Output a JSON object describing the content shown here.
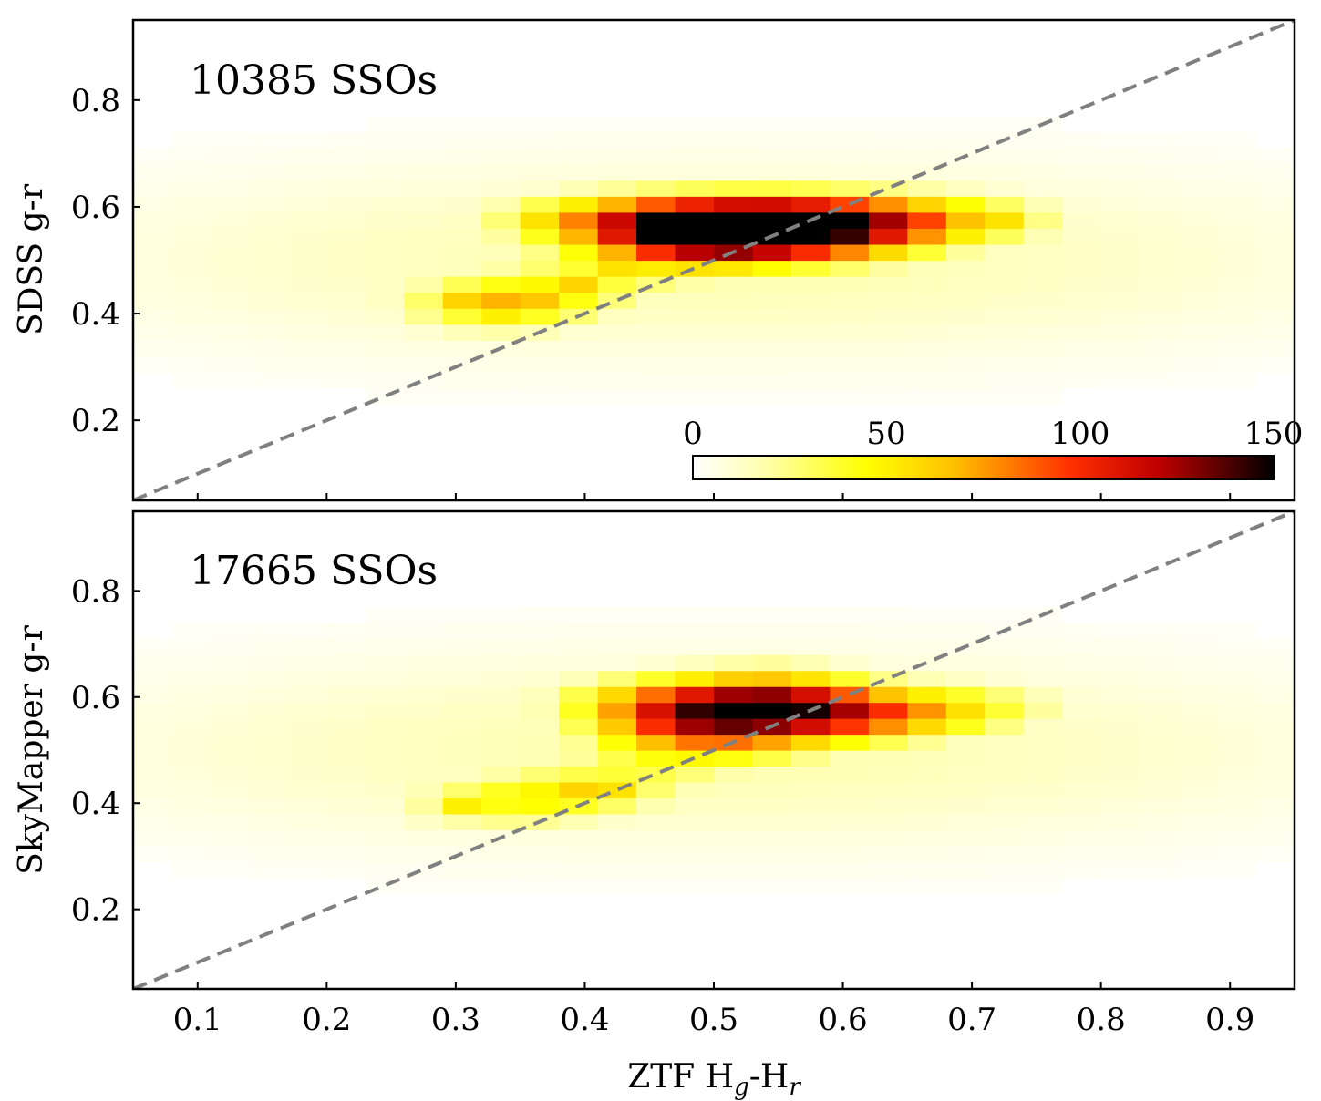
{
  "chart_data": [
    {
      "type": "heatmap",
      "panel": "top",
      "annotation": "10385 SSOs",
      "ylabel": "SDSS g-r",
      "xlabel": "",
      "xlim": [
        0.05,
        0.95
      ],
      "ylim": [
        0.05,
        0.95
      ],
      "x_ticks": [
        0.1,
        0.2,
        0.3,
        0.4,
        0.5,
        0.6,
        0.7,
        0.8,
        0.9
      ],
      "y_ticks": [
        "0.2",
        "0.4",
        "0.6",
        "0.8"
      ],
      "show_x_tick_labels": false,
      "reference_line": {
        "slope": 1,
        "intercept": 0,
        "style": "dashed",
        "color": "#808080"
      },
      "bins": {
        "x_start": 0.05,
        "x_step": 0.03,
        "y_start": 0.05,
        "y_step": 0.03
      },
      "peak": {
        "x": 0.545,
        "y": 0.575,
        "count": 150
      },
      "main_clump": [
        {
          "x": 0.545,
          "y": 0.575,
          "count": 150
        },
        {
          "x": 0.515,
          "y": 0.575,
          "count": 140
        },
        {
          "x": 0.575,
          "y": 0.575,
          "count": 135
        },
        {
          "x": 0.605,
          "y": 0.575,
          "count": 125
        },
        {
          "x": 0.485,
          "y": 0.575,
          "count": 120
        },
        {
          "x": 0.455,
          "y": 0.575,
          "count": 110
        },
        {
          "x": 0.545,
          "y": 0.545,
          "count": 110
        },
        {
          "x": 0.515,
          "y": 0.545,
          "count": 105
        },
        {
          "x": 0.605,
          "y": 0.545,
          "count": 100
        },
        {
          "x": 0.635,
          "y": 0.575,
          "count": 95
        },
        {
          "x": 0.485,
          "y": 0.545,
          "count": 90
        },
        {
          "x": 0.425,
          "y": 0.575,
          "count": 80
        },
        {
          "x": 0.665,
          "y": 0.575,
          "count": 75
        },
        {
          "x": 0.455,
          "y": 0.545,
          "count": 85
        },
        {
          "x": 0.515,
          "y": 0.515,
          "count": 75
        },
        {
          "x": 0.485,
          "y": 0.515,
          "count": 70
        },
        {
          "x": 0.605,
          "y": 0.515,
          "count": 65
        },
        {
          "x": 0.395,
          "y": 0.575,
          "count": 70
        },
        {
          "x": 0.365,
          "y": 0.575,
          "count": 55
        },
        {
          "x": 0.695,
          "y": 0.575,
          "count": 60
        },
        {
          "x": 0.725,
          "y": 0.575,
          "count": 55
        },
        {
          "x": 0.335,
          "y": 0.425,
          "count": 70
        },
        {
          "x": 0.365,
          "y": 0.425,
          "count": 65
        },
        {
          "x": 0.305,
          "y": 0.425,
          "count": 60
        },
        {
          "x": 0.395,
          "y": 0.455,
          "count": 60
        },
        {
          "x": 0.425,
          "y": 0.485,
          "count": 55
        },
        {
          "x": 0.335,
          "y": 0.395,
          "count": 50
        }
      ]
    },
    {
      "type": "heatmap",
      "panel": "bottom",
      "annotation": "17665 SSOs",
      "ylabel": "SkyMapper g-r",
      "xlabel": "ZTF H",
      "xlabel_sub_1": "g",
      "xlabel_mid": "-H",
      "xlabel_sub_2": "r",
      "xlim": [
        0.05,
        0.95
      ],
      "ylim": [
        0.05,
        0.95
      ],
      "x_ticks": [
        "0.1",
        "0.2",
        "0.3",
        "0.4",
        "0.5",
        "0.6",
        "0.7",
        "0.8",
        "0.9"
      ],
      "y_ticks": [
        "0.2",
        "0.4",
        "0.6",
        "0.8"
      ],
      "show_x_tick_labels": true,
      "reference_line": {
        "slope": 1,
        "intercept": 0,
        "style": "dashed",
        "color": "#808080"
      },
      "bins": {
        "x_start": 0.05,
        "x_step": 0.03,
        "y_start": 0.05,
        "y_step": 0.03
      },
      "peak": {
        "x": 0.545,
        "y": 0.585,
        "count": 150
      },
      "main_clump": [
        {
          "x": 0.545,
          "y": 0.585,
          "count": 150
        },
        {
          "x": 0.575,
          "y": 0.575,
          "count": 140
        },
        {
          "x": 0.605,
          "y": 0.565,
          "count": 130
        },
        {
          "x": 0.515,
          "y": 0.585,
          "count": 120
        },
        {
          "x": 0.485,
          "y": 0.575,
          "count": 110
        },
        {
          "x": 0.545,
          "y": 0.625,
          "count": 105
        },
        {
          "x": 0.515,
          "y": 0.545,
          "count": 100
        },
        {
          "x": 0.455,
          "y": 0.545,
          "count": 95
        },
        {
          "x": 0.485,
          "y": 0.525,
          "count": 95
        },
        {
          "x": 0.635,
          "y": 0.565,
          "count": 85
        },
        {
          "x": 0.455,
          "y": 0.595,
          "count": 80
        },
        {
          "x": 0.425,
          "y": 0.595,
          "count": 75
        },
        {
          "x": 0.665,
          "y": 0.575,
          "count": 70
        },
        {
          "x": 0.545,
          "y": 0.505,
          "count": 70
        },
        {
          "x": 0.455,
          "y": 0.475,
          "count": 65
        },
        {
          "x": 0.395,
          "y": 0.425,
          "count": 60
        },
        {
          "x": 0.365,
          "y": 0.405,
          "count": 60
        },
        {
          "x": 0.335,
          "y": 0.405,
          "count": 55
        },
        {
          "x": 0.305,
          "y": 0.395,
          "count": 50
        },
        {
          "x": 0.425,
          "y": 0.425,
          "count": 55
        },
        {
          "x": 0.695,
          "y": 0.575,
          "count": 55
        },
        {
          "x": 0.725,
          "y": 0.585,
          "count": 45
        }
      ]
    }
  ],
  "colorbar": {
    "colormap": "afmhot_r",
    "range": [
      0,
      150
    ],
    "tick_labels": [
      "0",
      "50",
      "100",
      "150"
    ],
    "placement": "lower-right of top panel"
  },
  "colors": {
    "reference_line": "#808080",
    "axes": "#000000"
  }
}
